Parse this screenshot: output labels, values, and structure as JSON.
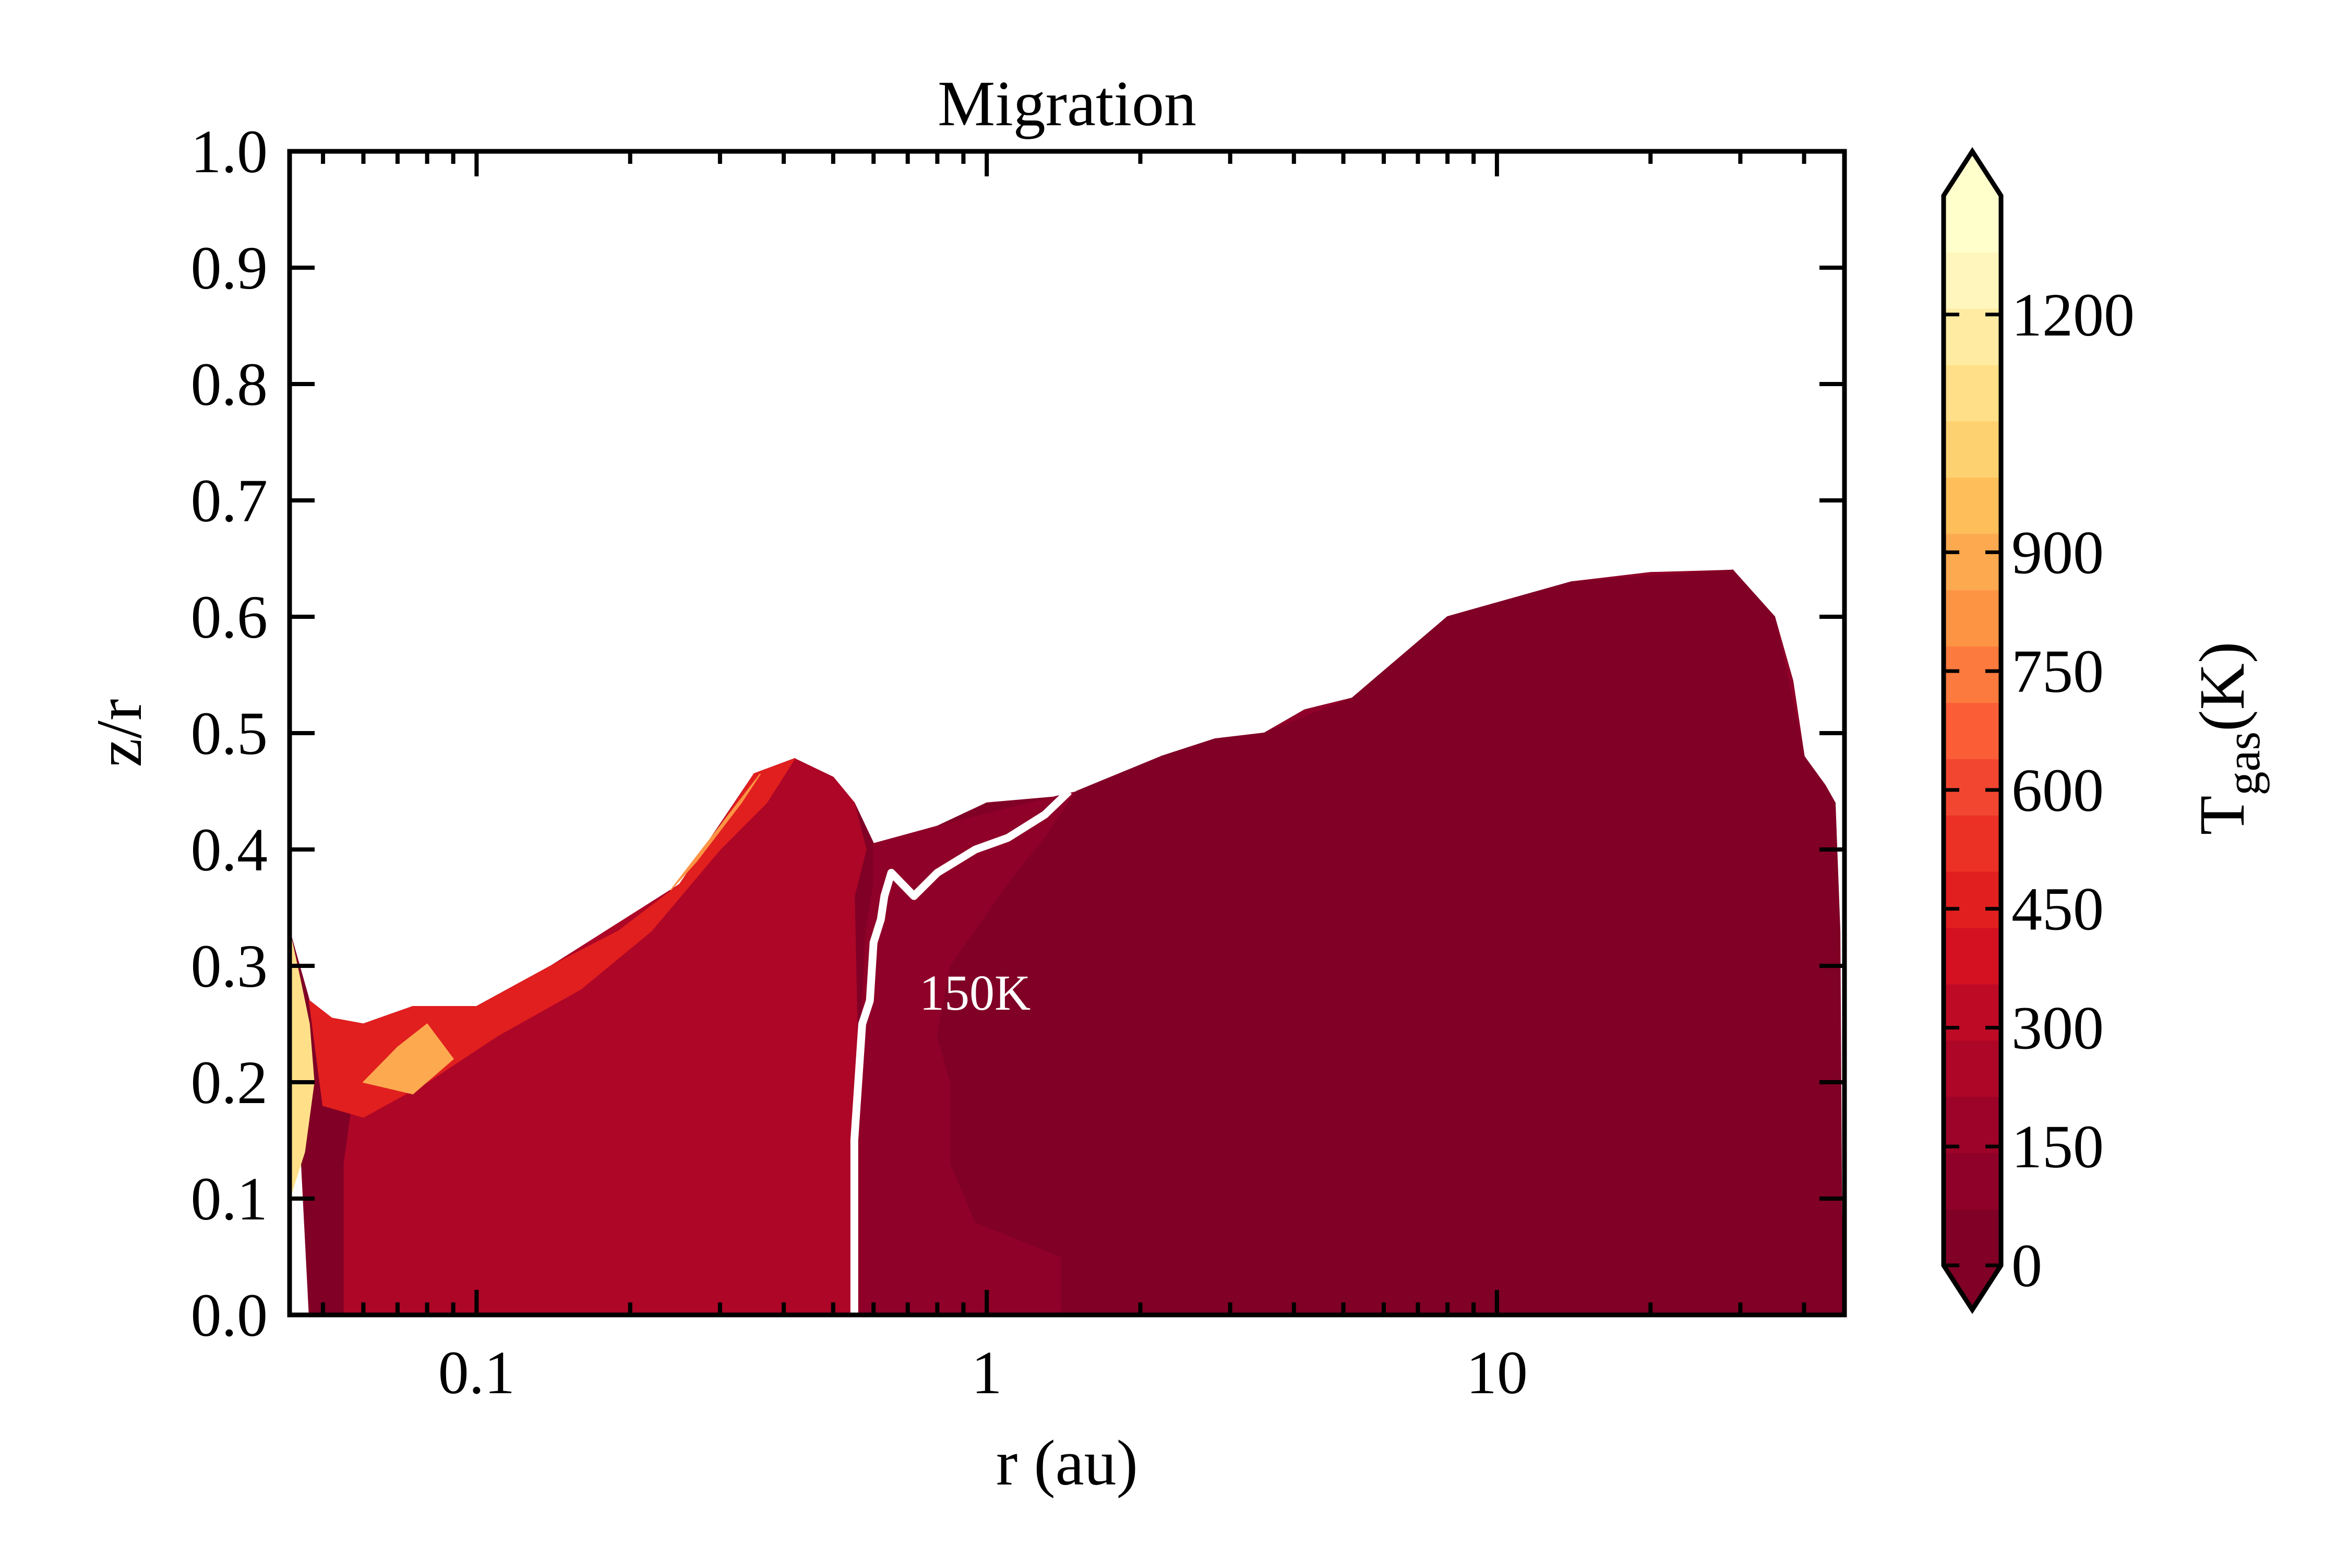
{
  "chart_data": {
    "type": "filled-contour",
    "title": "Migration",
    "xlabel": "r (au)",
    "ylabel": "z/r",
    "xscale": "log",
    "xlim": [
      0.043,
      48
    ],
    "ylim": [
      0.0,
      1.0
    ],
    "xticks": [
      {
        "value": 0.1,
        "label": "0.1"
      },
      {
        "value": 1,
        "label": "1"
      },
      {
        "value": 10,
        "label": "10"
      }
    ],
    "yticks": [
      {
        "value": 0.0,
        "label": "0.0"
      },
      {
        "value": 0.1,
        "label": "0.1"
      },
      {
        "value": 0.2,
        "label": "0.2"
      },
      {
        "value": 0.3,
        "label": "0.3"
      },
      {
        "value": 0.4,
        "label": "0.4"
      },
      {
        "value": 0.5,
        "label": "0.5"
      },
      {
        "value": 0.6,
        "label": "0.6"
      },
      {
        "value": 0.7,
        "label": "0.7"
      },
      {
        "value": 0.8,
        "label": "0.8"
      },
      {
        "value": 0.9,
        "label": "0.9"
      },
      {
        "value": 1.0,
        "label": "1.0"
      }
    ],
    "colorbar": {
      "label_main": "T",
      "label_sub": "gas",
      "label_tail": "(K)",
      "min": 0,
      "max": 1350,
      "extend": "both",
      "ticks": [
        {
          "value": 0,
          "label": "0"
        },
        {
          "value": 150,
          "label": "150"
        },
        {
          "value": 300,
          "label": "300"
        },
        {
          "value": 450,
          "label": "450"
        },
        {
          "value": 600,
          "label": "600"
        },
        {
          "value": 750,
          "label": "750"
        },
        {
          "value": 900,
          "label": "900"
        },
        {
          "value": 1200,
          "label": "1200"
        }
      ],
      "colors": [
        "#800026",
        "#8f0128",
        "#9d0329",
        "#ad0627",
        "#bf0a26",
        "#d31121",
        "#e11f1f",
        "#eb3026",
        "#f24630",
        "#fb5e37",
        "#fc7a3d",
        "#fd9444",
        "#fda94f",
        "#febf5a",
        "#fed170",
        "#ffe088",
        "#ffeca2",
        "#fff6bd",
        "#ffffcc"
      ]
    },
    "contour_line": {
      "level": 150,
      "label": "150K",
      "color": "#ffffff"
    },
    "regions": [
      {
        "name": "disk-envelope",
        "value": 30,
        "points": [
          [
            0.043,
            0.33
          ],
          [
            0.047,
            0.27
          ],
          [
            0.052,
            0.255
          ],
          [
            0.06,
            0.25
          ],
          [
            0.075,
            0.265
          ],
          [
            0.1,
            0.265
          ],
          [
            0.14,
            0.3
          ],
          [
            0.19,
            0.33
          ],
          [
            0.25,
            0.37
          ],
          [
            0.3,
            0.42
          ],
          [
            0.35,
            0.465
          ],
          [
            0.42,
            0.478
          ],
          [
            0.5,
            0.462
          ],
          [
            0.55,
            0.44
          ],
          [
            0.6,
            0.405
          ],
          [
            0.7,
            0.4
          ],
          [
            0.8,
            0.42
          ],
          [
            1.0,
            0.44
          ],
          [
            1.35,
            0.445
          ],
          [
            1.7,
            0.455
          ],
          [
            2.2,
            0.48
          ],
          [
            2.8,
            0.495
          ],
          [
            3.5,
            0.5
          ],
          [
            4.2,
            0.52
          ],
          [
            5.2,
            0.53
          ],
          [
            6.5,
            0.55
          ],
          [
            8.0,
            0.6
          ],
          [
            9.0,
            0.605
          ],
          [
            11,
            0.6
          ],
          [
            14,
            0.63
          ],
          [
            17,
            0.622
          ],
          [
            20,
            0.638
          ],
          [
            23,
            0.635
          ],
          [
            26,
            0.625
          ],
          [
            29,
            0.64
          ],
          [
            30,
            0.595
          ],
          [
            35,
            0.6
          ],
          [
            38,
            0.545
          ],
          [
            40,
            0.48
          ],
          [
            44,
            0.455
          ],
          [
            46,
            0.44
          ],
          [
            47,
            0.33
          ],
          [
            47.5,
            0.0
          ],
          [
            0.047,
            0.0
          ]
        ]
      },
      {
        "name": "cold-band",
        "value": 90,
        "points": [
          [
            0.6,
            0.405
          ],
          [
            0.8,
            0.42
          ],
          [
            1.35,
            0.445
          ],
          [
            1.7,
            0.455
          ],
          [
            2.2,
            0.48
          ],
          [
            2.8,
            0.495
          ],
          [
            3.5,
            0.5
          ],
          [
            4.2,
            0.52
          ],
          [
            5.2,
            0.53
          ],
          [
            6.5,
            0.55
          ],
          [
            8.0,
            0.6
          ],
          [
            11,
            0.6
          ],
          [
            14,
            0.63
          ],
          [
            20,
            0.638
          ],
          [
            29,
            0.64
          ],
          [
            30,
            0.595
          ],
          [
            35,
            0.6
          ],
          [
            38,
            0.545
          ],
          [
            40,
            0.48
          ],
          [
            46,
            0.44
          ],
          [
            47.5,
            0.0
          ],
          [
            0.55,
            0.0
          ],
          [
            0.56,
            0.2
          ],
          [
            0.58,
            0.33
          ],
          [
            0.6,
            0.37
          ]
        ]
      },
      {
        "name": "cold-inner",
        "value": 50,
        "points": [
          [
            1.5,
            0.45
          ],
          [
            2.2,
            0.48
          ],
          [
            2.8,
            0.495
          ],
          [
            3.5,
            0.5
          ],
          [
            5.2,
            0.53
          ],
          [
            8.0,
            0.6
          ],
          [
            14,
            0.63
          ],
          [
            29,
            0.64
          ],
          [
            35,
            0.6
          ],
          [
            40,
            0.48
          ],
          [
            46,
            0.44
          ],
          [
            47.5,
            0.0
          ],
          [
            1.4,
            0.0
          ],
          [
            1.4,
            0.05
          ],
          [
            0.95,
            0.08
          ],
          [
            0.85,
            0.13
          ],
          [
            0.85,
            0.2
          ],
          [
            0.8,
            0.24
          ],
          [
            0.85,
            0.3
          ],
          [
            0.95,
            0.33
          ],
          [
            1.1,
            0.37
          ],
          [
            1.3,
            0.41
          ]
        ]
      },
      {
        "name": "coldest-core",
        "value": 10,
        "points": [
          [
            2.8,
            0.49
          ],
          [
            3.5,
            0.5
          ],
          [
            5.2,
            0.53
          ],
          [
            8.0,
            0.6
          ],
          [
            14,
            0.63
          ],
          [
            29,
            0.64
          ],
          [
            35,
            0.6
          ],
          [
            40,
            0.48
          ],
          [
            46,
            0.44
          ],
          [
            47.5,
            0.02
          ],
          [
            28,
            0.01
          ],
          [
            15,
            0.06
          ],
          [
            12,
            0.09
          ],
          [
            6,
            0.12
          ],
          [
            3.5,
            0.13
          ],
          [
            3.0,
            0.28
          ],
          [
            2.8,
            0.37
          ],
          [
            2.6,
            0.42
          ]
        ]
      },
      {
        "name": "warm-midplane",
        "value": 230,
        "points": [
          [
            0.06,
            0.25
          ],
          [
            0.1,
            0.265
          ],
          [
            0.14,
            0.3
          ],
          [
            0.25,
            0.37
          ],
          [
            0.35,
            0.465
          ],
          [
            0.42,
            0.478
          ],
          [
            0.5,
            0.462
          ],
          [
            0.55,
            0.44
          ],
          [
            0.58,
            0.4
          ],
          [
            0.55,
            0.36
          ],
          [
            0.56,
            0.2
          ],
          [
            0.55,
            0.0
          ],
          [
            0.055,
            0.0
          ],
          [
            0.055,
            0.13
          ]
        ]
      },
      {
        "name": "hot-layer",
        "value": 480,
        "points": [
          [
            0.047,
            0.27
          ],
          [
            0.052,
            0.255
          ],
          [
            0.06,
            0.25
          ],
          [
            0.075,
            0.265
          ],
          [
            0.1,
            0.265
          ],
          [
            0.14,
            0.3
          ],
          [
            0.19,
            0.33
          ],
          [
            0.25,
            0.37
          ],
          [
            0.3,
            0.42
          ],
          [
            0.35,
            0.465
          ],
          [
            0.42,
            0.478
          ],
          [
            0.37,
            0.44
          ],
          [
            0.3,
            0.4
          ],
          [
            0.22,
            0.33
          ],
          [
            0.16,
            0.28
          ],
          [
            0.11,
            0.24
          ],
          [
            0.08,
            0.2
          ],
          [
            0.06,
            0.17
          ],
          [
            0.05,
            0.18
          ]
        ]
      },
      {
        "name": "hottest-rim",
        "value": 1100,
        "points": [
          [
            0.043,
            0.33
          ],
          [
            0.045,
            0.29
          ],
          [
            0.047,
            0.25
          ],
          [
            0.048,
            0.2
          ],
          [
            0.046,
            0.14
          ],
          [
            0.043,
            0.1
          ]
        ]
      },
      {
        "name": "hot-ridge",
        "value": 820,
        "points": [
          [
            0.24,
            0.365
          ],
          [
            0.3,
            0.42
          ],
          [
            0.36,
            0.465
          ],
          [
            0.33,
            0.44
          ],
          [
            0.27,
            0.39
          ]
        ]
      },
      {
        "name": "hot-inner-spot",
        "value": 900,
        "points": [
          [
            0.06,
            0.2
          ],
          [
            0.07,
            0.23
          ],
          [
            0.08,
            0.25
          ],
          [
            0.09,
            0.22
          ],
          [
            0.075,
            0.19
          ]
        ]
      }
    ],
    "contour_150K_path": [
      [
        0.55,
        0.0
      ],
      [
        0.55,
        0.15
      ],
      [
        0.56,
        0.2
      ],
      [
        0.57,
        0.25
      ],
      [
        0.59,
        0.27
      ],
      [
        0.6,
        0.32
      ],
      [
        0.62,
        0.34
      ],
      [
        0.63,
        0.36
      ],
      [
        0.65,
        0.38
      ],
      [
        0.72,
        0.36
      ],
      [
        0.8,
        0.38
      ],
      [
        0.95,
        0.4
      ],
      [
        1.1,
        0.41
      ],
      [
        1.3,
        0.43
      ],
      [
        1.45,
        0.45
      ]
    ]
  }
}
